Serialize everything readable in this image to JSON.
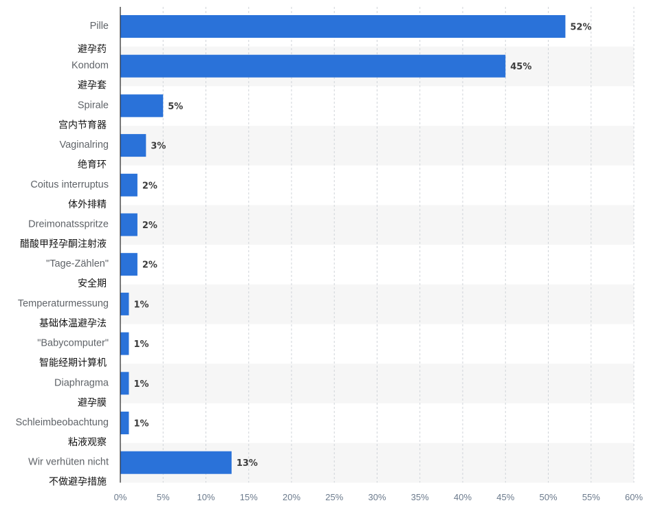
{
  "chart_data": {
    "type": "bar",
    "orientation": "horizontal",
    "categories": [
      {
        "de": "Pille",
        "zh": "避孕药"
      },
      {
        "de": "Kondom",
        "zh": "避孕套"
      },
      {
        "de": "Spirale",
        "zh": "宫内节育器"
      },
      {
        "de": "Vaginalring",
        "zh": "绝育环"
      },
      {
        "de": "Coitus interruptus",
        "zh": "体外排精"
      },
      {
        "de": "Dreimonatsspritze",
        "zh": "醋酸甲羟孕酮注射液"
      },
      {
        "de": "\"Tage-Zählen\"",
        "zh": "安全期"
      },
      {
        "de": "Temperaturmessung",
        "zh": "基础体温避孕法"
      },
      {
        "de": "\"Babycomputer\"",
        "zh": "智能经期计算机"
      },
      {
        "de": "Diaphragma",
        "zh": "避孕膜"
      },
      {
        "de": "Schleimbeobachtung",
        "zh": "粘液观察"
      },
      {
        "de": "Wir verhüten nicht",
        "zh": "不做避孕措施"
      }
    ],
    "values": [
      52,
      45,
      5,
      3,
      2,
      2,
      2,
      1,
      1,
      1,
      1,
      13
    ],
    "value_labels": [
      "52%",
      "45%",
      "5%",
      "3%",
      "2%",
      "2%",
      "2%",
      "1%",
      "1%",
      "1%",
      "1%",
      "13%"
    ],
    "xlim": [
      0,
      60
    ],
    "xticks": [
      "0%",
      "5%",
      "10%",
      "15%",
      "20%",
      "25%",
      "30%",
      "35%",
      "40%",
      "45%",
      "50%",
      "55%",
      "60%"
    ],
    "grid": true,
    "bar_color": "#2a72d9",
    "band_color": "#f6f6f6"
  }
}
